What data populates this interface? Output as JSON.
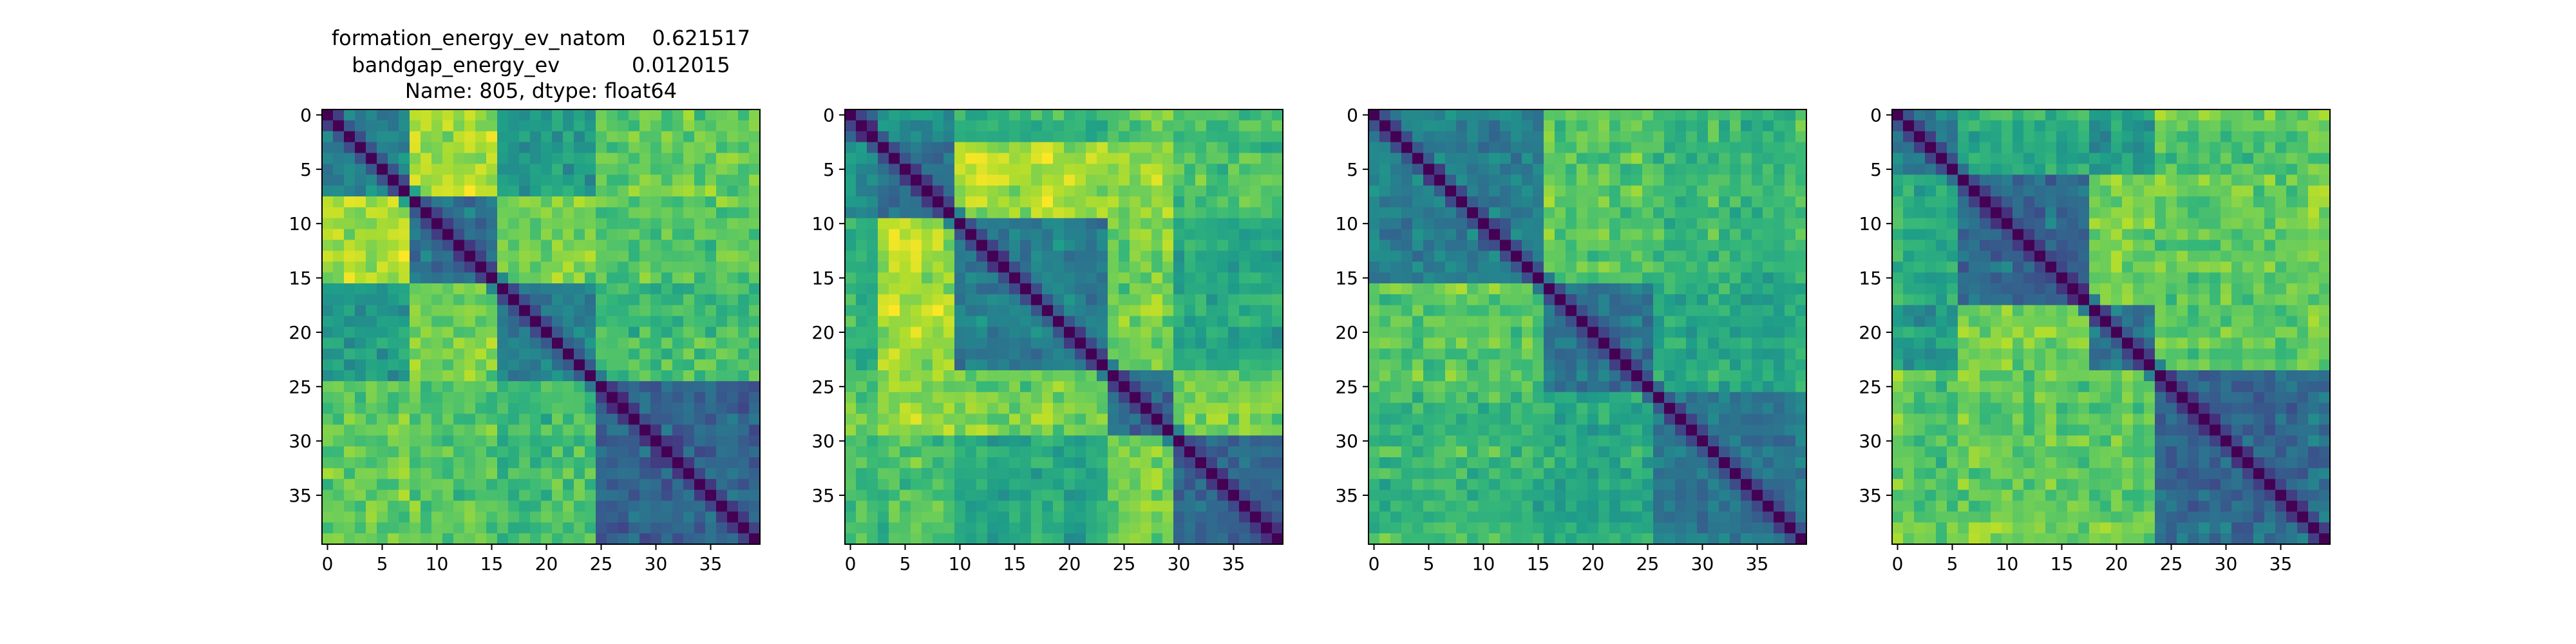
{
  "title_lines": [
    "formation_energy_ev_natom    0.621517",
    "bandgap_energy_ev           0.012015",
    "Name: 805, dtype: float64"
  ],
  "chart_data": [
    {
      "type": "heatmap",
      "size": 40,
      "colormap": "viridis",
      "diagonal_value": 0,
      "xticks": [
        0,
        5,
        10,
        15,
        20,
        25,
        30,
        35
      ],
      "yticks": [
        0,
        5,
        10,
        15,
        20,
        25,
        30,
        35
      ],
      "xlim": [
        -0.5,
        39.5
      ],
      "ylim": [
        39.5,
        -0.5
      ],
      "blocks": [
        [
          0,
          8
        ],
        [
          8,
          16
        ],
        [
          16,
          25
        ],
        [
          25,
          40
        ]
      ],
      "seed": 805
    },
    {
      "type": "heatmap",
      "size": 40,
      "colormap": "viridis",
      "diagonal_value": 0,
      "xticks": [
        0,
        5,
        10,
        15,
        20,
        25,
        30,
        35
      ],
      "yticks": [
        0,
        5,
        10,
        15,
        20,
        25,
        30,
        35
      ],
      "xlim": [
        -0.5,
        39.5
      ],
      "ylim": [
        39.5,
        -0.5
      ],
      "blocks": [
        [
          0,
          3
        ],
        [
          3,
          10
        ],
        [
          10,
          24
        ],
        [
          24,
          30
        ],
        [
          30,
          40
        ]
      ],
      "seed": 1805
    },
    {
      "type": "heatmap",
      "size": 40,
      "colormap": "viridis",
      "diagonal_value": 0,
      "xticks": [
        0,
        5,
        10,
        15,
        20,
        25,
        30,
        35
      ],
      "yticks": [
        0,
        5,
        10,
        15,
        20,
        25,
        30,
        35
      ],
      "xlim": [
        -0.5,
        39.5
      ],
      "ylim": [
        39.5,
        -0.5
      ],
      "blocks": [
        [
          0,
          16
        ],
        [
          16,
          26
        ],
        [
          26,
          40
        ]
      ],
      "seed": 2805
    },
    {
      "type": "heatmap",
      "size": 40,
      "colormap": "viridis",
      "diagonal_value": 0,
      "xticks": [
        0,
        5,
        10,
        15,
        20,
        25,
        30,
        35
      ],
      "yticks": [
        0,
        5,
        10,
        15,
        20,
        25,
        30,
        35
      ],
      "xlim": [
        -0.5,
        39.5
      ],
      "ylim": [
        39.5,
        -0.5
      ],
      "blocks": [
        [
          0,
          6
        ],
        [
          6,
          18
        ],
        [
          18,
          24
        ],
        [
          24,
          40
        ]
      ],
      "seed": 3805
    }
  ]
}
